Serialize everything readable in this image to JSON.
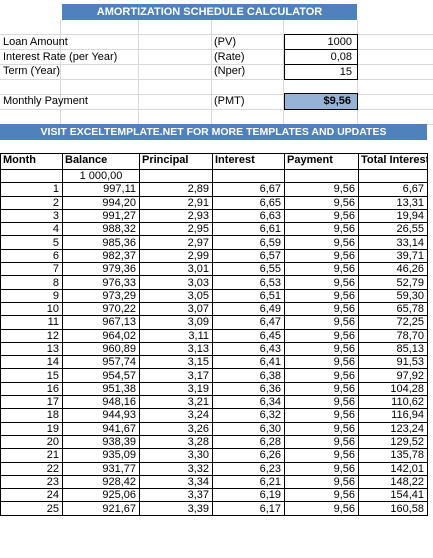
{
  "title": "AMORTIZATION SCHEDULE CALCULATOR",
  "inputs": [
    {
      "label": "Loan Amount",
      "code": "(PV)",
      "value": "1000"
    },
    {
      "label": "Interest Rate (per Year)",
      "code": "(Rate)",
      "value": "0,08"
    },
    {
      "label": "Term (Year)",
      "code": "(Nper)",
      "value": "15"
    }
  ],
  "payment": {
    "label": "Monthly Payment",
    "code": "(PMT)",
    "value": "$9,56"
  },
  "promo": "VISIT EXCELTEMPLATE.NET FOR MORE TEMPLATES AND UPDATES",
  "columns": [
    "Month",
    "Balance",
    "Principal",
    "Interest",
    "Payment",
    "Total Interest"
  ],
  "opening_balance": "1 000,00",
  "rows": [
    [
      "1",
      "997,11",
      "2,89",
      "6,67",
      "9,56",
      "6,67"
    ],
    [
      "2",
      "994,20",
      "2,91",
      "6,65",
      "9,56",
      "13,31"
    ],
    [
      "3",
      "991,27",
      "2,93",
      "6,63",
      "9,56",
      "19,94"
    ],
    [
      "4",
      "988,32",
      "2,95",
      "6,61",
      "9,56",
      "26,55"
    ],
    [
      "5",
      "985,36",
      "2,97",
      "6,59",
      "9,56",
      "33,14"
    ],
    [
      "6",
      "982,37",
      "2,99",
      "6,57",
      "9,56",
      "39,71"
    ],
    [
      "7",
      "979,36",
      "3,01",
      "6,55",
      "9,56",
      "46,26"
    ],
    [
      "8",
      "976,33",
      "3,03",
      "6,53",
      "9,56",
      "52,79"
    ],
    [
      "9",
      "973,29",
      "3,05",
      "6,51",
      "9,56",
      "59,30"
    ],
    [
      "10",
      "970,22",
      "3,07",
      "6,49",
      "9,56",
      "65,78"
    ],
    [
      "11",
      "967,13",
      "3,09",
      "6,47",
      "9,56",
      "72,25"
    ],
    [
      "12",
      "964,02",
      "3,11",
      "6,45",
      "9,56",
      "78,70"
    ],
    [
      "13",
      "960,89",
      "3,13",
      "6,43",
      "9,56",
      "85,13"
    ],
    [
      "14",
      "957,74",
      "3,15",
      "6,41",
      "9,56",
      "91,53"
    ],
    [
      "15",
      "954,57",
      "3,17",
      "6,38",
      "9,56",
      "97,92"
    ],
    [
      "16",
      "951,38",
      "3,19",
      "6,36",
      "9,56",
      "104,28"
    ],
    [
      "17",
      "948,16",
      "3,21",
      "6,34",
      "9,56",
      "110,62"
    ],
    [
      "18",
      "944,93",
      "3,24",
      "6,32",
      "9,56",
      "116,94"
    ],
    [
      "19",
      "941,67",
      "3,26",
      "6,30",
      "9,56",
      "123,24"
    ],
    [
      "20",
      "938,39",
      "3,28",
      "6,28",
      "9,56",
      "129,52"
    ],
    [
      "21",
      "935,09",
      "3,30",
      "6,26",
      "9,56",
      "135,78"
    ],
    [
      "22",
      "931,77",
      "3,32",
      "6,23",
      "9,56",
      "142,01"
    ],
    [
      "23",
      "928,42",
      "3,34",
      "6,21",
      "9,56",
      "148,22"
    ],
    [
      "24",
      "925,06",
      "3,37",
      "6,19",
      "9,56",
      "154,41"
    ],
    [
      "25",
      "921,67",
      "3,39",
      "6,17",
      "9,56",
      "160,58"
    ]
  ]
}
